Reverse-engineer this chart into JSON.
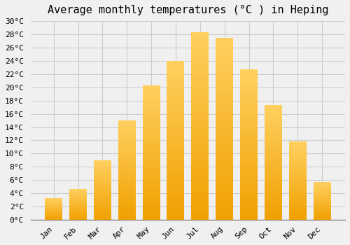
{
  "title": "Average monthly temperatures (°C ) in Heping",
  "months": [
    "Jan",
    "Feb",
    "Mar",
    "Apr",
    "May",
    "Jun",
    "Jul",
    "Aug",
    "Sep",
    "Oct",
    "Nov",
    "Dec"
  ],
  "values": [
    3.3,
    4.7,
    9.0,
    15.0,
    20.3,
    24.0,
    28.3,
    27.5,
    22.7,
    17.3,
    11.8,
    5.7
  ],
  "bar_color_dark": "#F0A000",
  "bar_color_mid": "#FFBB33",
  "bar_color_light": "#FFD060",
  "background_color": "#F0F0F0",
  "grid_color": "#CCCCCC",
  "ylim": [
    0,
    30
  ],
  "ytick_step": 2,
  "title_fontsize": 11,
  "tick_fontsize": 8,
  "font_family": "monospace"
}
